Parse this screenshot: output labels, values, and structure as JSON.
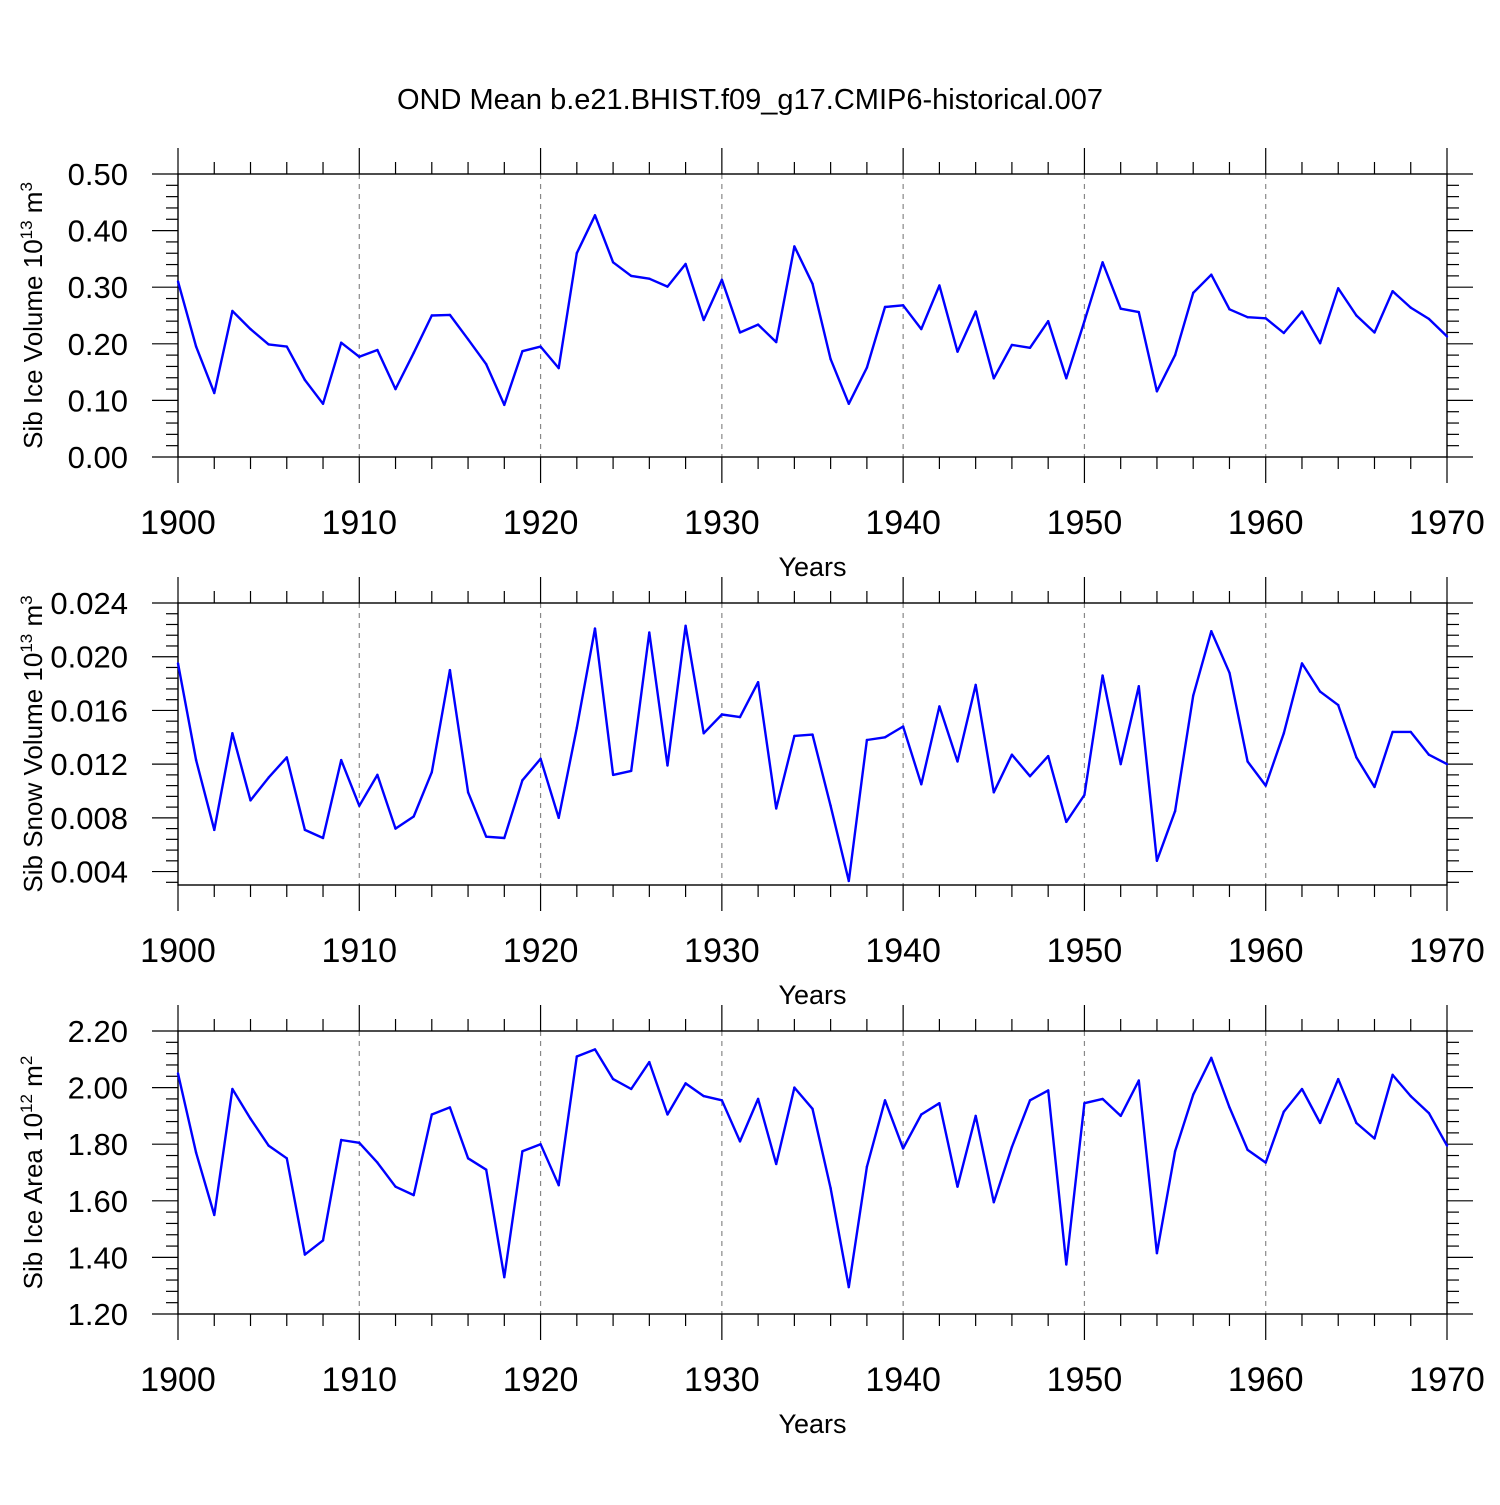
{
  "title": "OND Mean b.e21.BHIST.f09_g17.CMIP6-historical.007",
  "chart_data": [
    {
      "type": "line",
      "ylabel_text": "Sib Ice Volume 10",
      "ylabel_exp": "13",
      "ylabel_unit": " m",
      "ylabel_unit_exp": "3",
      "xlabel": "Years",
      "xlim": [
        1900,
        1970
      ],
      "ylim": [
        0,
        0.5
      ],
      "yticks": [
        0.0,
        0.1,
        0.2,
        0.3,
        0.4,
        0.5
      ],
      "ytick_labels": [
        "0.00",
        "0.10",
        "0.20",
        "0.30",
        "0.40",
        "0.50"
      ],
      "xticks": [
        1900,
        1910,
        1920,
        1930,
        1940,
        1950,
        1960,
        1970
      ],
      "xtick_labels": [
        "1900",
        "1910",
        "1920",
        "1930",
        "1940",
        "1950",
        "1960",
        "1970"
      ],
      "line_color": "#0000ff",
      "x_start": 1900,
      "values": [
        0.31,
        0.195,
        0.113,
        0.258,
        0.226,
        0.199,
        0.195,
        0.136,
        0.094,
        0.202,
        0.177,
        0.189,
        0.12,
        0.184,
        0.25,
        0.251,
        0.208,
        0.164,
        0.092,
        0.187,
        0.195,
        0.157,
        0.36,
        0.427,
        0.344,
        0.32,
        0.315,
        0.301,
        0.341,
        0.242,
        0.313,
        0.22,
        0.234,
        0.203,
        0.372,
        0.306,
        0.173,
        0.094,
        0.158,
        0.265,
        0.268,
        0.226,
        0.303,
        0.186,
        0.257,
        0.139,
        0.198,
        0.193,
        0.24,
        0.139,
        0.24,
        0.344,
        0.262,
        0.256,
        0.116,
        0.18,
        0.29,
        0.322,
        0.261,
        0.247,
        0.245,
        0.219,
        0.257,
        0.201,
        0.298,
        0.25,
        0.22,
        0.293,
        0.264,
        0.244,
        0.213
      ]
    },
    {
      "type": "line",
      "ylabel_text": "Sib Snow Volume 10",
      "ylabel_exp": "13",
      "ylabel_unit": " m",
      "ylabel_unit_exp": "3",
      "xlabel": "Years",
      "xlim": [
        1900,
        1970
      ],
      "ylim": [
        0.003,
        0.024
      ],
      "yticks": [
        0.004,
        0.008,
        0.012,
        0.016,
        0.02,
        0.024
      ],
      "ytick_labels": [
        "0.004",
        "0.008",
        "0.012",
        "0.016",
        "0.020",
        "0.024"
      ],
      "xticks": [
        1900,
        1910,
        1920,
        1930,
        1940,
        1950,
        1960,
        1970
      ],
      "xtick_labels": [
        "1900",
        "1910",
        "1920",
        "1930",
        "1940",
        "1950",
        "1960",
        "1970"
      ],
      "line_color": "#0000ff",
      "x_start": 1900,
      "values": [
        0.0195,
        0.0123,
        0.0071,
        0.0143,
        0.0093,
        0.011,
        0.0125,
        0.0071,
        0.0065,
        0.0123,
        0.0089,
        0.0112,
        0.0072,
        0.0081,
        0.0114,
        0.019,
        0.0099,
        0.0066,
        0.0065,
        0.0108,
        0.0124,
        0.008,
        0.0147,
        0.0221,
        0.0112,
        0.0115,
        0.0218,
        0.0119,
        0.0223,
        0.0143,
        0.0157,
        0.0155,
        0.0181,
        0.0087,
        0.0141,
        0.0142,
        0.0089,
        0.0033,
        0.0138,
        0.014,
        0.0148,
        0.0105,
        0.0163,
        0.0122,
        0.0179,
        0.0099,
        0.0127,
        0.0111,
        0.0126,
        0.0077,
        0.0097,
        0.0186,
        0.012,
        0.0178,
        0.0048,
        0.0085,
        0.0171,
        0.0219,
        0.0188,
        0.0122,
        0.0104,
        0.0143,
        0.0195,
        0.0174,
        0.0164,
        0.0125,
        0.0103,
        0.0144,
        0.0144,
        0.0127,
        0.012
      ]
    },
    {
      "type": "line",
      "ylabel_text": "Sib Ice Area 10",
      "ylabel_exp": "12",
      "ylabel_unit": " m",
      "ylabel_unit_exp": "2",
      "xlabel": "Years",
      "xlim": [
        1900,
        1970
      ],
      "ylim": [
        1.2,
        2.2
      ],
      "yticks": [
        1.2,
        1.4,
        1.6,
        1.8,
        2.0,
        2.2
      ],
      "ytick_labels": [
        "1.20",
        "1.40",
        "1.60",
        "1.80",
        "2.00",
        "2.20"
      ],
      "xticks": [
        1900,
        1910,
        1920,
        1930,
        1940,
        1950,
        1960,
        1970
      ],
      "xtick_labels": [
        "1900",
        "1910",
        "1920",
        "1930",
        "1940",
        "1950",
        "1960",
        "1970"
      ],
      "line_color": "#0000ff",
      "x_start": 1900,
      "values": [
        2.05,
        1.77,
        1.55,
        1.995,
        1.89,
        1.795,
        1.75,
        1.41,
        1.46,
        1.815,
        1.805,
        1.735,
        1.65,
        1.62,
        1.905,
        1.93,
        1.75,
        1.71,
        1.33,
        1.775,
        1.8,
        1.655,
        2.11,
        2.135,
        2.03,
        1.995,
        2.09,
        1.905,
        2.015,
        1.97,
        1.955,
        1.81,
        1.96,
        1.73,
        2.0,
        1.925,
        1.645,
        1.295,
        1.72,
        1.955,
        1.785,
        1.905,
        1.945,
        1.65,
        1.9,
        1.595,
        1.79,
        1.955,
        1.99,
        1.375,
        1.945,
        1.96,
        1.9,
        2.025,
        1.415,
        1.775,
        1.975,
        2.105,
        1.93,
        1.78,
        1.735,
        1.915,
        1.995,
        1.875,
        2.03,
        1.875,
        1.82,
        2.045,
        1.97,
        1.91,
        1.795
      ]
    }
  ]
}
